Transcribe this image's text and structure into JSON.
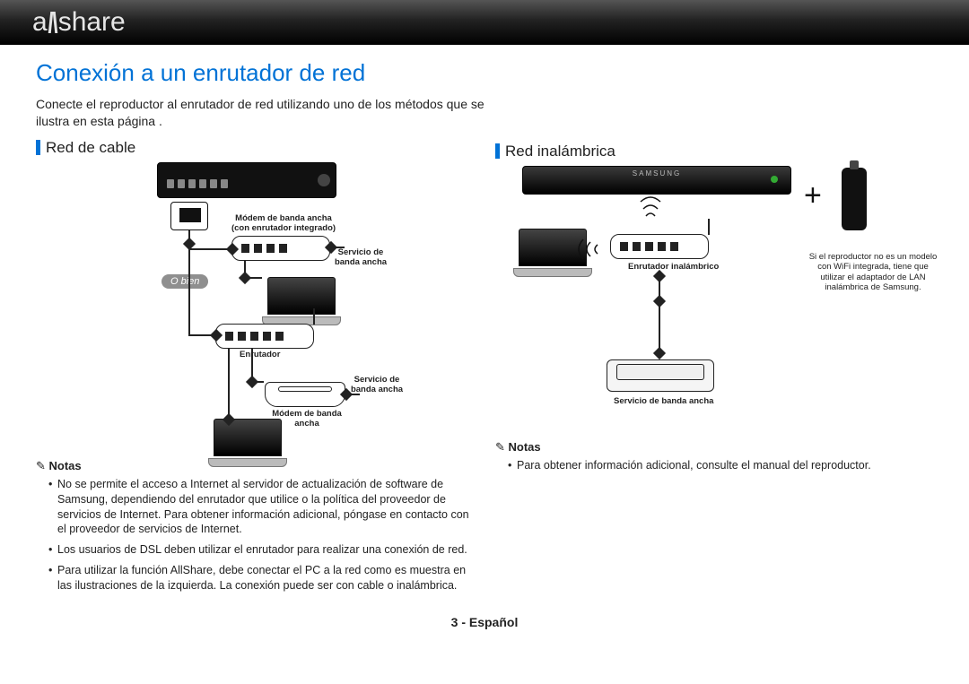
{
  "logo": {
    "part1": "a",
    "part2": "share"
  },
  "title": "Conexión a un enrutador de red",
  "intro": "Conecte el reproductor al enrutador de red utilizando uno de los métodos que se ilustra en esta página .",
  "left": {
    "heading": "Red de cable",
    "obien": "O bien",
    "labels": {
      "modem_integrated": "Módem de banda ancha\n(con enrutador integrado)",
      "broadband1": "Servicio de\nbanda ancha",
      "router": "Enrutador",
      "broadband2": "Servicio de\nbanda ancha",
      "modem": "Módem de banda\nancha"
    },
    "notes_heading": "Notas",
    "notes": [
      "No se permite el acceso a Internet al servidor de actualización de software de Samsung, dependiendo del enrutador que utilice o la política del proveedor de servicios de Internet. Para obtener información adicional, póngase en contacto con el proveedor de servicios de Internet.",
      "Los usuarios de DSL deben utilizar el enrutador para realizar una conexión de red.",
      "Para utilizar la función AllShare, debe conectar el PC a la red como es muestra en las ilustraciones de la izquierda. La conexión puede ser con cable o inalámbrica."
    ]
  },
  "right": {
    "heading": "Red inalámbrica",
    "brand": "SAMSUNG",
    "labels": {
      "wrouter": "Enrutador inalámbrico",
      "broadband": "Servicio de banda ancha"
    },
    "side_note": "Si el reproductor no es un modelo con WiFi integrada, tiene que utilizar el adaptador de LAN inalámbrica de Samsung.",
    "notes_heading": "Notas",
    "notes": [
      "Para obtener información adicional, consulte el manual del reproductor."
    ]
  },
  "footer": "3 - Español",
  "colors": {
    "accent": "#0072d6",
    "topbar_from": "#555555",
    "topbar_to": "#000000",
    "text": "#222222"
  },
  "type": "document-manual-page"
}
